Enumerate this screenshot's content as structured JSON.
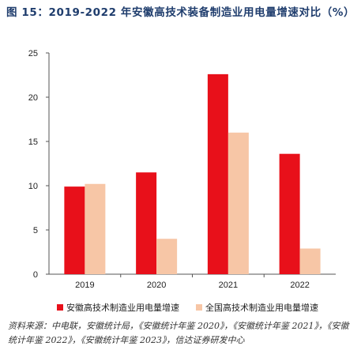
{
  "figure": {
    "title": "图 15：2019-2022 年安徽高技术装备制造业用电量增速对比（%）",
    "source": "资料来源：中电联，安徽统计局，《安徽统计年鉴 2020》，《安徽统计年鉴 2021》，《安徽统计年鉴 2022》，《安徽统计年鉴 2023》，信达证券研发中心"
  },
  "chart_data": {
    "type": "bar",
    "title": "",
    "xlabel": "",
    "ylabel": "",
    "categories": [
      "2019",
      "2020",
      "2021",
      "2022"
    ],
    "series": [
      {
        "name": "安徽高技术制造业用电量增速",
        "values": [
          9.9,
          11.5,
          22.6,
          13.6
        ],
        "color": "#e8101a"
      },
      {
        "name": "全国高技术制造业用电量增速",
        "values": [
          10.2,
          4.0,
          16.0,
          2.9
        ],
        "color": "#f7c6a6"
      }
    ],
    "ylim": [
      0,
      25
    ],
    "yticks": [
      0,
      5,
      10,
      15,
      20,
      25
    ],
    "grid": false,
    "legend_position": "bottom"
  }
}
